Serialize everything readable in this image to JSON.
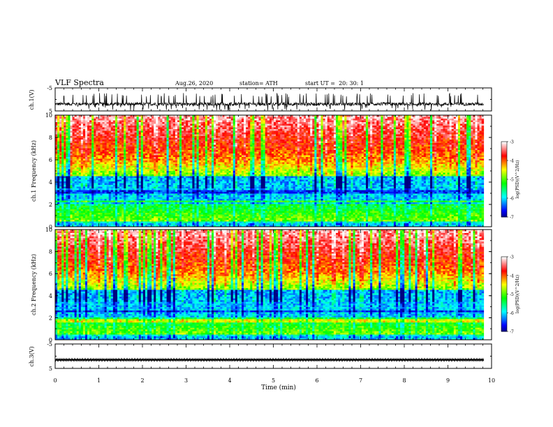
{
  "header": {
    "title": "VLF Spectra",
    "date": "Aug.26, 2020",
    "station": "station= ATH",
    "start": "start UT =  20: 30: 1"
  },
  "chart_data": [
    {
      "type": "line",
      "panel": "ch1-waveform",
      "ylabel": "ch.1(V)",
      "ylim": [
        -5,
        5
      ],
      "yticks": [
        "5",
        "-5"
      ],
      "xlim": [
        0,
        10
      ],
      "series": [
        {
          "values_summary": {
            "mean": -2.0,
            "min": -4.8,
            "max": 2.8
          }
        }
      ]
    },
    {
      "type": "heatmap",
      "panel": "ch1-spectrogram",
      "ylabel": "ch.1 Frequency (kHz)",
      "ylim": [
        0,
        10
      ],
      "yticks": [
        "0",
        "2",
        "4",
        "6",
        "8",
        "10"
      ],
      "xlim": [
        0,
        10
      ],
      "colorbar": {
        "label": "log(PSD)(V^2/Hz)",
        "range": [
          -7,
          -3
        ],
        "ticks": [
          "-3",
          "-4",
          "-5",
          "-6",
          "-7"
        ]
      }
    },
    {
      "type": "heatmap",
      "panel": "ch2-spectrogram",
      "ylabel": "ch.2 Frequency (kHz)",
      "ylim": [
        0,
        10
      ],
      "yticks": [
        "0",
        "2",
        "4",
        "6",
        "8",
        "10"
      ],
      "xlim": [
        0,
        10
      ],
      "colorbar": {
        "label": "log(PSD)(V^2/Hz)",
        "range": [
          -7,
          -3
        ],
        "ticks": [
          "-3",
          "-4",
          "-5",
          "-6",
          "-7"
        ]
      }
    },
    {
      "type": "line",
      "panel": "ch3-waveform",
      "ylabel": "ch.3(V)",
      "ylim": [
        -5,
        5
      ],
      "yticks": [
        "5",
        "-5"
      ],
      "xlim": [
        0,
        10
      ],
      "series": [
        {
          "values_summary": {
            "mean": -1.5,
            "min": -1.9,
            "max": -1.1
          }
        }
      ]
    }
  ],
  "xaxis": {
    "label": "Time (min)",
    "ticks": [
      "0",
      "1",
      "2",
      "3",
      "4",
      "5",
      "6",
      "7",
      "8",
      "9",
      "10"
    ],
    "data_end": 9.82
  },
  "colormap": [
    "#000080",
    "#0000ff",
    "#0080ff",
    "#00ffff",
    "#00ff80",
    "#00ff00",
    "#80ff00",
    "#ffff00",
    "#ff8000",
    "#ff0000",
    "#ff8080",
    "#ffffff"
  ]
}
